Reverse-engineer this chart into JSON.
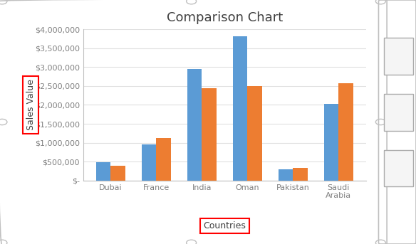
{
  "title": "Comparison Chart",
  "xlabel": "Countries",
  "ylabel": "Sales Value",
  "categories": [
    "Dubai",
    "France",
    "India",
    "Oman",
    "Pakistan",
    "Saudi\nArabia"
  ],
  "series1": [
    480000,
    950000,
    2950000,
    3820000,
    300000,
    2020000
  ],
  "series2": [
    390000,
    1130000,
    2440000,
    2500000,
    340000,
    2580000
  ],
  "color1": "#5B9BD5",
  "color2": "#ED7D31",
  "ylim_max": 4000000,
  "ytick_values": [
    0,
    500000,
    1000000,
    1500000,
    2000000,
    2500000,
    3000000,
    3500000,
    4000000
  ],
  "ytick_labels": [
    "$-",
    "$500,000",
    "$1,000,000",
    "$1,500,000",
    "$2,000,000",
    "$2,500,000",
    "$3,000,000",
    "$3,500,000",
    "$4,000,000"
  ],
  "background_color": "#FFFFFF",
  "bar_width": 0.32,
  "grid_color": "#E0E0E0",
  "spine_color": "#BFBFBF",
  "title_color": "#404040",
  "tick_color": "#808080",
  "border_color": "#C0C0C0",
  "label_fontsize": 8,
  "title_fontsize": 13,
  "xlabel_fontsize": 9,
  "ylabel_fontsize": 9
}
